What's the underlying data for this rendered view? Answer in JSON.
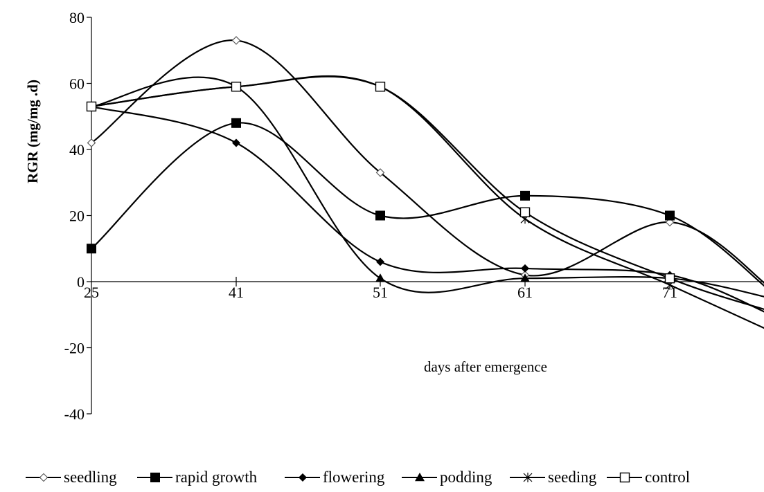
{
  "chart_data": {
    "type": "line",
    "title": "",
    "xlabel": "days  after emergence",
    "ylabel": "RGR (mg/mg .d)",
    "x": [
      25,
      41,
      51,
      61,
      71
    ],
    "x_tick_labels": [
      "25",
      "41",
      "51",
      "61",
      "71"
    ],
    "ylim": [
      -40,
      80
    ],
    "y_ticks": [
      -40,
      -20,
      0,
      20,
      40,
      60,
      80
    ],
    "y_tick_labels": [
      "-40",
      "-20",
      "0",
      "20",
      "40",
      "60",
      "80"
    ],
    "grid": false,
    "legend_position": "bottom",
    "series": [
      {
        "name": "seedling",
        "marker": "diamond-open",
        "values": [
          42,
          73,
          33,
          2,
          18
        ],
        "end_value": -2
      },
      {
        "name": "rapid growth",
        "marker": "square-filled",
        "values": [
          10,
          48,
          20,
          26,
          20
        ],
        "end_value": -3
      },
      {
        "name": "flowering",
        "marker": "diamond-filled",
        "values": [
          53,
          42,
          6,
          4,
          2
        ],
        "end_value": -10
      },
      {
        "name": "podding",
        "marker": "triangle-filled",
        "values": [
          53,
          59,
          1,
          1,
          1
        ],
        "end_value": -5
      },
      {
        "name": "seeding",
        "marker": "asterisk",
        "values": [
          53,
          59,
          59,
          19,
          -1
        ],
        "end_value": -15
      },
      {
        "name": "control",
        "marker": "square-open",
        "values": [
          53,
          59,
          59,
          21,
          1
        ],
        "end_value": -9
      }
    ]
  }
}
